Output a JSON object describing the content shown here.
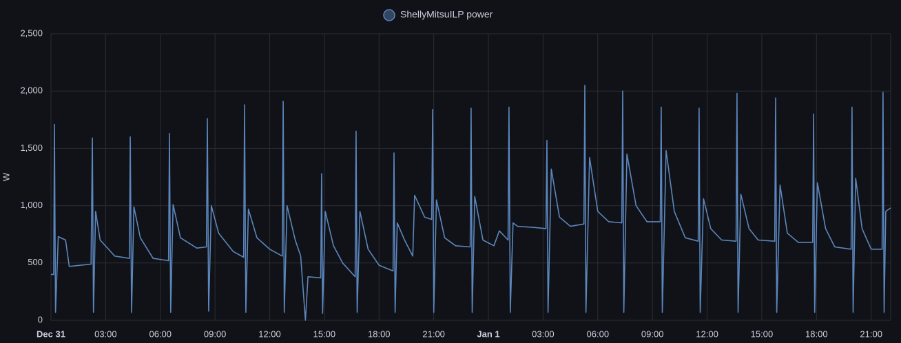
{
  "chart_data": {
    "type": "line",
    "y_label": "W",
    "x": [
      0,
      0.15,
      0.19,
      0.25,
      0.4,
      0.8,
      1.0,
      2.2,
      2.27,
      2.33,
      2.45,
      2.7,
      3.5,
      4.3,
      4.35,
      4.42,
      4.55,
      4.9,
      5.6,
      6.45,
      6.5,
      6.57,
      6.7,
      7.1,
      8.0,
      8.53,
      8.58,
      8.65,
      8.8,
      9.2,
      10.0,
      10.57,
      10.62,
      10.69,
      10.83,
      11.3,
      12.0,
      12.69,
      12.74,
      12.8,
      12.95,
      13.4,
      13.7,
      13.96,
      14.1,
      14.8,
      14.85,
      14.9,
      15.05,
      15.5,
      16.0,
      16.69,
      16.74,
      16.8,
      16.95,
      17.4,
      18.0,
      18.77,
      18.82,
      18.88,
      19.0,
      19.4,
      19.85,
      19.95,
      20.5,
      20.89,
      20.94,
      21.0,
      21.15,
      21.6,
      22.2,
      23.0,
      23.05,
      23.11,
      23.25,
      23.7,
      24.3,
      24.6,
      25.08,
      25.13,
      25.2,
      25.35,
      25.6,
      26.5,
      27.16,
      27.21,
      27.27,
      27.45,
      27.9,
      28.5,
      29.24,
      29.29,
      29.35,
      29.55,
      30.0,
      30.6,
      31.32,
      31.37,
      31.43,
      31.6,
      32.1,
      32.7,
      33.43,
      33.48,
      33.54,
      33.75,
      34.2,
      34.8,
      35.51,
      35.56,
      35.62,
      35.8,
      36.2,
      36.8,
      37.59,
      37.64,
      37.7,
      37.85,
      38.3,
      38.8,
      39.71,
      39.76,
      39.82,
      40.0,
      40.4,
      41.0,
      41.79,
      41.84,
      41.9,
      42.05,
      42.5,
      43.0,
      43.9,
      43.95,
      44.01,
      44.15,
      44.5,
      45.0,
      45.6,
      45.65,
      45.71,
      45.8,
      46.07
    ],
    "series": [
      {
        "name": "ShellyMitsuILP power",
        "color": "#5b87be",
        "values": [
          400,
          400,
          1710,
          70,
          730,
          700,
          470,
          490,
          1590,
          70,
          950,
          700,
          560,
          540,
          1600,
          70,
          990,
          720,
          540,
          520,
          1630,
          70,
          1010,
          720,
          630,
          640,
          1760,
          80,
          1000,
          760,
          600,
          550,
          1880,
          70,
          970,
          720,
          620,
          560,
          1910,
          70,
          1000,
          700,
          560,
          0,
          380,
          370,
          1280,
          60,
          950,
          650,
          500,
          380,
          1650,
          70,
          950,
          620,
          480,
          430,
          1460,
          70,
          850,
          700,
          560,
          1090,
          900,
          880,
          1840,
          70,
          1050,
          720,
          650,
          640,
          1850,
          70,
          1080,
          700,
          650,
          780,
          700,
          1860,
          70,
          850,
          820,
          810,
          800,
          1570,
          70,
          1320,
          900,
          820,
          840,
          2050,
          70,
          1420,
          950,
          860,
          850,
          2000,
          70,
          1450,
          1000,
          860,
          860,
          1860,
          70,
          1480,
          950,
          720,
          690,
          1850,
          70,
          1060,
          800,
          700,
          690,
          1980,
          70,
          1100,
          800,
          700,
          690,
          1940,
          70,
          1180,
          760,
          680,
          680,
          1800,
          70,
          1200,
          800,
          640,
          620,
          1860,
          70,
          1240,
          800,
          620,
          620,
          1990,
          70,
          950,
          980
        ]
      }
    ],
    "xlim": [
      0,
      46.07
    ],
    "xticks": [
      {
        "value": 0,
        "label": "Dec 31"
      },
      {
        "value": 3,
        "label": "03:00"
      },
      {
        "value": 6,
        "label": "06:00"
      },
      {
        "value": 9,
        "label": "09:00"
      },
      {
        "value": 12,
        "label": "12:00"
      },
      {
        "value": 15,
        "label": "15:00"
      },
      {
        "value": 18,
        "label": "18:00"
      },
      {
        "value": 21,
        "label": "21:00"
      },
      {
        "value": 24,
        "label": "Jan 1"
      },
      {
        "value": 27,
        "label": "03:00"
      },
      {
        "value": 30,
        "label": "06:00"
      },
      {
        "value": 33,
        "label": "09:00"
      },
      {
        "value": 36,
        "label": "12:00"
      },
      {
        "value": 39,
        "label": "15:00"
      },
      {
        "value": 42,
        "label": "18:00"
      },
      {
        "value": 45,
        "label": "21:00"
      }
    ],
    "ylim": [
      0,
      2500
    ],
    "yticks": [
      0,
      500,
      {
        "value": 1000,
        "label": "1,000"
      },
      {
        "value": 1500,
        "label": "1,500"
      },
      {
        "value": 2000,
        "label": "2,000"
      },
      {
        "value": 2500,
        "label": "2,500"
      }
    ],
    "grid": true
  }
}
